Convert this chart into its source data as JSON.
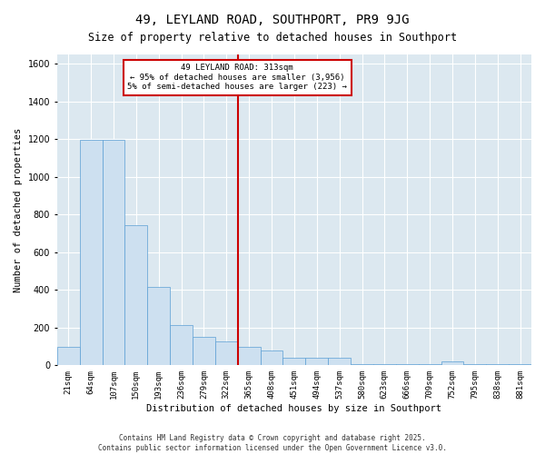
{
  "title": "49, LEYLAND ROAD, SOUTHPORT, PR9 9JG",
  "subtitle": "Size of property relative to detached houses in Southport",
  "xlabel": "Distribution of detached houses by size in Southport",
  "ylabel": "Number of detached properties",
  "categories": [
    "21sqm",
    "64sqm",
    "107sqm",
    "150sqm",
    "193sqm",
    "236sqm",
    "279sqm",
    "322sqm",
    "365sqm",
    "408sqm",
    "451sqm",
    "494sqm",
    "537sqm",
    "580sqm",
    "623sqm",
    "666sqm",
    "709sqm",
    "752sqm",
    "795sqm",
    "838sqm",
    "881sqm"
  ],
  "values": [
    100,
    1195,
    1195,
    745,
    415,
    215,
    150,
    125,
    100,
    78,
    42,
    42,
    38,
    7,
    7,
    7,
    7,
    22,
    7,
    7,
    7
  ],
  "bar_color": "#cde0f0",
  "bar_edge_color": "#5a9fd4",
  "redline_index": 7.5,
  "legend_box_text": [
    "49 LEYLAND ROAD: 313sqm",
    "← 95% of detached houses are smaller (3,956)",
    "5% of semi-detached houses are larger (223) →"
  ],
  "legend_box_color": "#ffffff",
  "legend_box_edge_color": "#cc0000",
  "redline_color": "#cc0000",
  "ylim": [
    0,
    1650
  ],
  "yticks": [
    0,
    200,
    400,
    600,
    800,
    1000,
    1200,
    1400,
    1600
  ],
  "fig_bg_color": "#ffffff",
  "plot_bg_color": "#dce8f0",
  "footer_line1": "Contains HM Land Registry data © Crown copyright and database right 2025.",
  "footer_line2": "Contains public sector information licensed under the Open Government Licence v3.0."
}
